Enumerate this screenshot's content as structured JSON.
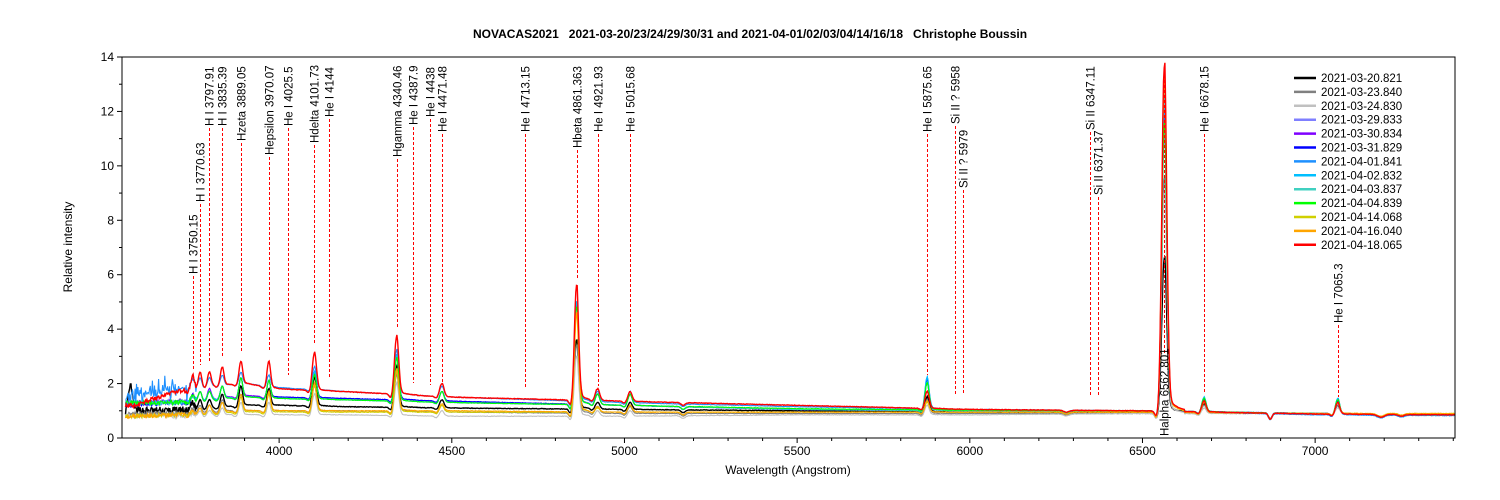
{
  "chart_data": {
    "type": "line",
    "title": "NOVACAS2021   2021-03-20/23/24/29/30/31 and 2021-04-01/02/03/04/14/16/18   Christophe Boussin",
    "xlabel": "Wavelength (Angstrom)",
    "ylabel": "Relative intensity",
    "xlim": [
      3545,
      7405
    ],
    "ylim": [
      0,
      14
    ],
    "x_ticks": [
      "4000",
      "4500",
      "5000",
      "5500",
      "6000",
      "6500",
      "7000"
    ],
    "y_ticks": [
      "0",
      "2",
      "4",
      "6",
      "8",
      "10",
      "12",
      "14"
    ],
    "grid": false,
    "legend_position": "top-right",
    "continuum_wavelengths": [
      3580,
      3700,
      3800,
      3900,
      4000,
      4200,
      4500,
      5000,
      5500,
      6000,
      6500,
      7000,
      7400
    ],
    "emission_line_wavelengths": [
      3750,
      3771,
      3798,
      3835,
      3889,
      3970,
      4102,
      4340,
      4471,
      4861,
      4922,
      5016,
      5876,
      6563,
      6678,
      7065
    ],
    "series": [
      {
        "name": "2021-03-20.821",
        "color": "#000000",
        "continuum": [
          1.0,
          1.0,
          1.1,
          1.2,
          1.2,
          1.15,
          1.1,
          1.05,
          1.0,
          0.95,
          0.95,
          0.9,
          0.85
        ],
        "peaks": [
          1.3,
          1.4,
          1.4,
          1.6,
          1.9,
          1.8,
          2.2,
          2.6,
          1.4,
          3.6,
          1.3,
          1.3,
          1.5,
          6.6,
          1.25,
          1.2
        ]
      },
      {
        "name": "2021-03-23.840",
        "color": "#808080",
        "continuum": [
          0.9,
          0.9,
          1.0,
          1.0,
          1.0,
          1.0,
          0.95,
          0.9,
          0.9,
          0.9,
          0.9,
          0.9,
          0.85
        ],
        "peaks": [
          1.1,
          1.2,
          1.2,
          1.4,
          1.6,
          1.6,
          1.9,
          2.3,
          1.2,
          3.4,
          1.15,
          1.15,
          1.4,
          9.5,
          1.2,
          1.2
        ]
      },
      {
        "name": "2021-03-24.830",
        "color": "#c0c0c0",
        "continuum": [
          0.8,
          0.8,
          0.85,
          0.85,
          0.85,
          0.85,
          0.8,
          0.8,
          0.85,
          0.85,
          0.9,
          0.9,
          0.85
        ],
        "peaks": [
          0.95,
          1.0,
          1.0,
          1.1,
          1.3,
          1.3,
          1.6,
          2.0,
          1.0,
          3.0,
          1.0,
          1.0,
          1.2,
          9.0,
          1.1,
          1.1
        ]
      },
      {
        "name": "2021-03-29.833",
        "color": "#7f7fff",
        "continuum": [
          1.3,
          1.3,
          1.4,
          1.5,
          1.45,
          1.4,
          1.3,
          1.2,
          1.05,
          1.0,
          1.0,
          0.9,
          0.85
        ],
        "peaks": [
          1.6,
          1.7,
          1.7,
          1.9,
          2.2,
          2.1,
          2.4,
          3.0,
          1.7,
          4.9,
          1.6,
          1.6,
          2.0,
          11.0,
          1.4,
          1.35
        ]
      },
      {
        "name": "2021-03-30.834",
        "color": "#7f00ff",
        "continuum": [
          1.3,
          1.35,
          1.45,
          1.55,
          1.5,
          1.45,
          1.35,
          1.2,
          1.05,
          1.0,
          1.0,
          0.9,
          0.85
        ],
        "peaks": [
          1.6,
          1.7,
          1.8,
          1.9,
          2.2,
          2.1,
          2.4,
          3.0,
          1.7,
          4.9,
          1.6,
          1.6,
          2.0,
          11.5,
          1.4,
          1.35
        ]
      },
      {
        "name": "2021-03-31.829",
        "color": "#0000ff",
        "continuum": [
          1.2,
          1.3,
          1.4,
          1.5,
          1.5,
          1.45,
          1.35,
          1.2,
          1.05,
          1.0,
          1.0,
          0.9,
          0.85
        ],
        "peaks": [
          1.6,
          1.7,
          1.7,
          1.9,
          2.2,
          2.1,
          2.4,
          3.0,
          1.7,
          5.0,
          1.6,
          1.6,
          2.1,
          11.8,
          1.4,
          1.35
        ]
      },
      {
        "name": "2021-04-01.841",
        "color": "#1e90ff",
        "continuum": [
          1.6,
          1.8,
          1.9,
          2.0,
          1.85,
          1.7,
          1.5,
          1.3,
          1.15,
          1.05,
          1.0,
          0.85,
          0.82
        ],
        "peaks": [
          2.2,
          2.2,
          2.2,
          2.3,
          2.4,
          2.3,
          2.6,
          3.2,
          1.9,
          5.0,
          1.7,
          1.7,
          2.2,
          12.0,
          1.45,
          1.45
        ]
      },
      {
        "name": "2021-04-02.832",
        "color": "#00bfff",
        "continuum": [
          1.3,
          1.3,
          1.45,
          1.5,
          1.45,
          1.4,
          1.3,
          1.2,
          1.05,
          1.0,
          1.0,
          0.88,
          0.85
        ],
        "peaks": [
          1.6,
          1.7,
          1.7,
          1.9,
          2.2,
          2.1,
          2.4,
          3.0,
          1.7,
          5.0,
          1.6,
          1.6,
          2.2,
          12.5,
          1.5,
          1.45
        ]
      },
      {
        "name": "2021-04-03.837",
        "color": "#40d0c0",
        "continuum": [
          1.3,
          1.3,
          1.4,
          1.5,
          1.45,
          1.4,
          1.3,
          1.2,
          1.05,
          1.0,
          1.0,
          0.9,
          0.85
        ],
        "peaks": [
          1.6,
          1.7,
          1.7,
          1.9,
          2.2,
          2.1,
          2.3,
          2.9,
          1.7,
          4.8,
          1.6,
          1.6,
          2.0,
          11.5,
          1.45,
          1.4
        ]
      },
      {
        "name": "2021-04-04.839",
        "color": "#00ff00",
        "continuum": [
          1.3,
          1.3,
          1.4,
          1.5,
          1.45,
          1.4,
          1.3,
          1.2,
          1.08,
          1.02,
          1.0,
          0.9,
          0.85
        ],
        "peaks": [
          1.6,
          1.7,
          1.7,
          1.9,
          2.2,
          2.1,
          2.3,
          2.9,
          1.7,
          4.8,
          1.6,
          1.6,
          2.0,
          11.5,
          1.45,
          1.4
        ]
      },
      {
        "name": "2021-04-14.068",
        "color": "#d0d000",
        "continuum": [
          0.8,
          0.85,
          0.9,
          0.95,
          0.95,
          0.95,
          0.95,
          0.95,
          0.95,
          0.95,
          0.95,
          0.9,
          0.9
        ],
        "peaks": [
          1.0,
          1.1,
          1.2,
          1.3,
          1.5,
          1.6,
          1.9,
          2.4,
          1.2,
          4.5,
          1.1,
          1.2,
          1.3,
          13.0,
          1.3,
          1.3
        ]
      },
      {
        "name": "2021-04-16.040",
        "color": "#ffa500",
        "continuum": [
          0.8,
          0.85,
          0.95,
          1.0,
          1.0,
          1.0,
          1.0,
          0.95,
          0.95,
          0.95,
          0.95,
          0.9,
          0.9
        ],
        "peaks": [
          1.0,
          1.1,
          1.2,
          1.3,
          1.6,
          1.7,
          2.0,
          2.5,
          1.25,
          4.6,
          1.15,
          1.2,
          1.35,
          13.2,
          1.3,
          1.3
        ]
      },
      {
        "name": "2021-04-18.065",
        "color": "#ff0000",
        "continuum": [
          1.2,
          1.7,
          1.9,
          2.0,
          1.8,
          1.7,
          1.5,
          1.35,
          1.2,
          1.05,
          1.0,
          0.88,
          0.85
        ],
        "peaks": [
          2.3,
          2.4,
          2.4,
          2.6,
          2.8,
          2.8,
          3.1,
          3.7,
          2.0,
          5.6,
          1.8,
          1.7,
          1.7,
          13.6,
          1.35,
          1.3
        ]
      }
    ],
    "annotations": [
      {
        "label": "H I 3750.15",
        "wavelength": 3750.15
      },
      {
        "label": "H I 3770.63",
        "wavelength": 3770.63
      },
      {
        "label": "H I 3797.91",
        "wavelength": 3797.91
      },
      {
        "label": "H I 3835.39",
        "wavelength": 3835.39
      },
      {
        "label": "Hzeta 3889.05",
        "wavelength": 3889.05
      },
      {
        "label": "Hepsilon 3970.07",
        "wavelength": 3970.07
      },
      {
        "label": "He I 4025.5",
        "wavelength": 4025.5
      },
      {
        "label": "Hdelta 4101.73",
        "wavelength": 4101.73
      },
      {
        "label": "He I 4144",
        "wavelength": 4144
      },
      {
        "label": "Hgamma 4340.46",
        "wavelength": 4340.46
      },
      {
        "label": "He I 4387.9",
        "wavelength": 4387.9
      },
      {
        "label": "He I 4438",
        "wavelength": 4438
      },
      {
        "label": "He I 4471.48",
        "wavelength": 4471.48
      },
      {
        "label": "He I 4713.15",
        "wavelength": 4713.15
      },
      {
        "label": "Hbeta 4861.363",
        "wavelength": 4861.363
      },
      {
        "label": "He I 4921.93",
        "wavelength": 4921.93
      },
      {
        "label": "He I 5015.68",
        "wavelength": 5015.68
      },
      {
        "label": "He I 5875.65",
        "wavelength": 5875.65
      },
      {
        "label": "Si II ? 5958",
        "wavelength": 5958
      },
      {
        "label": "Si II ? 5979",
        "wavelength": 5979
      },
      {
        "label": "Si II 6347.11",
        "wavelength": 6347.11
      },
      {
        "label": "Si II 6371.37",
        "wavelength": 6371.37
      },
      {
        "label": "Halpha 6562.801",
        "wavelength": 6562.801
      },
      {
        "label": "He I 6678.15",
        "wavelength": 6678.15
      },
      {
        "label": "He I 7065.3",
        "wavelength": 7065.3
      }
    ],
    "annotation_line_color": "#ff0000"
  }
}
